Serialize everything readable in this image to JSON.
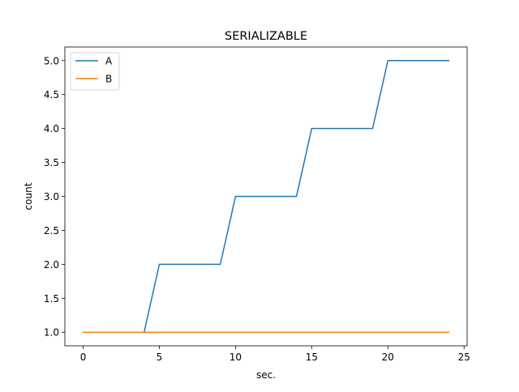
{
  "chart_data": {
    "type": "line",
    "title": "SERIALIZABLE",
    "xlabel": "sec.",
    "ylabel": "count",
    "xlim": [
      -1.2,
      25.2
    ],
    "ylim": [
      0.8,
      5.2
    ],
    "xticks": [
      0,
      5,
      10,
      15,
      20,
      25
    ],
    "yticks": [
      1.0,
      1.5,
      2.0,
      2.5,
      3.0,
      3.5,
      4.0,
      4.5,
      5.0
    ],
    "xtick_labels": [
      "0",
      "5",
      "10",
      "15",
      "20",
      "25"
    ],
    "ytick_labels": [
      "1.0",
      "1.5",
      "2.0",
      "2.5",
      "3.0",
      "3.5",
      "4.0",
      "4.5",
      "5.0"
    ],
    "grid": false,
    "legend_position": "upper-left",
    "x": [
      0,
      1,
      2,
      3,
      4,
      5,
      6,
      7,
      8,
      9,
      10,
      11,
      12,
      13,
      14,
      15,
      16,
      17,
      18,
      19,
      20,
      21,
      22,
      23,
      24
    ],
    "series": [
      {
        "name": "A",
        "color": "#1f77b4",
        "values": [
          1,
          1,
          1,
          1,
          1,
          2,
          2,
          2,
          2,
          2,
          3,
          3,
          3,
          3,
          3,
          4,
          4,
          4,
          4,
          4,
          5,
          5,
          5,
          5,
          5
        ]
      },
      {
        "name": "B",
        "color": "#ff7f0e",
        "values": [
          1,
          1,
          1,
          1,
          1,
          1,
          1,
          1,
          1,
          1,
          1,
          1,
          1,
          1,
          1,
          1,
          1,
          1,
          1,
          1,
          1,
          1,
          1,
          1,
          1
        ]
      }
    ]
  }
}
